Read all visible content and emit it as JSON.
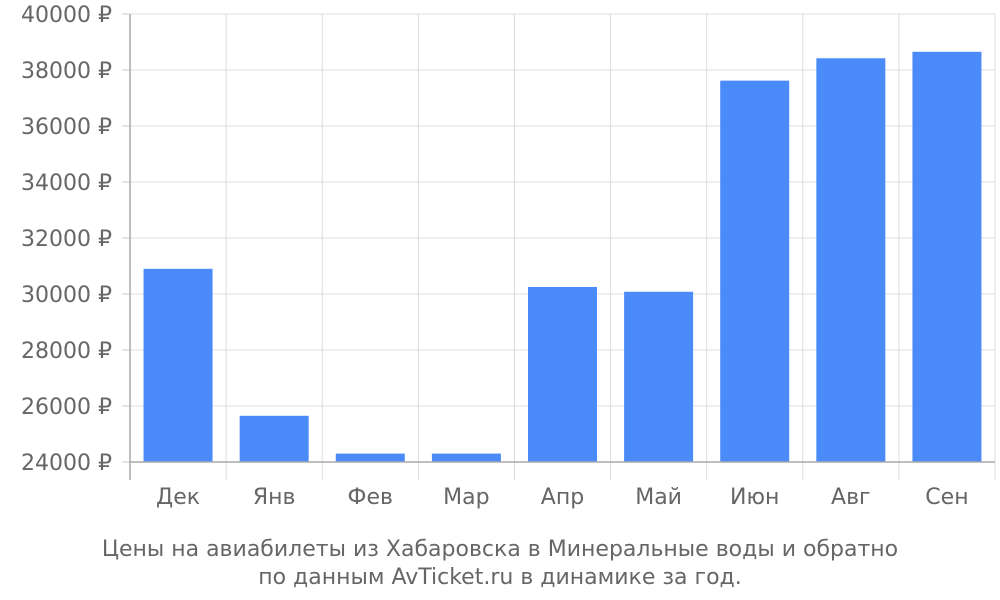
{
  "chart_data": {
    "type": "bar",
    "categories": [
      "Дек",
      "Янв",
      "Фев",
      "Мар",
      "Апр",
      "Май",
      "Июн",
      "Авг",
      "Сен"
    ],
    "values": [
      30900,
      25650,
      24300,
      24300,
      30250,
      30080,
      37620,
      38420,
      38650
    ],
    "ylim": [
      24000,
      40000
    ],
    "yticks": [
      24000,
      26000,
      28000,
      30000,
      32000,
      34000,
      36000,
      38000,
      40000
    ],
    "ytick_suffix": " ₽",
    "grid": true,
    "legend": "none",
    "bar_color": "#4a8af9",
    "caption_lines": [
      "Цены на авиабилеты из Хабаровска в Минеральные воды и обратно",
      "по данным AvTicket.ru в динамике за год."
    ]
  }
}
